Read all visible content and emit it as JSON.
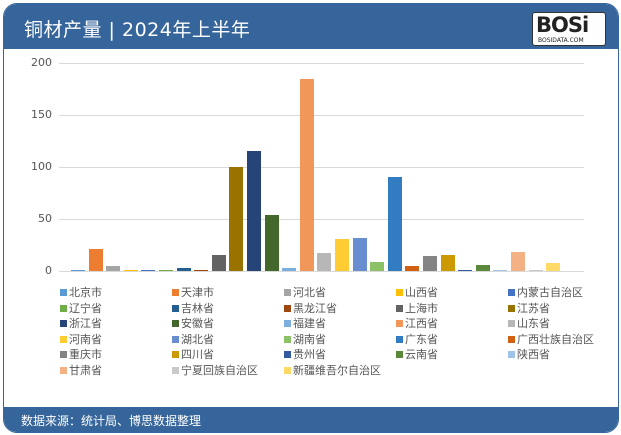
{
  "header": {
    "title": "铜材产量 | 2024年上半年",
    "logo_text": "BOSi",
    "logo_sub": "BOSIDATA.COM"
  },
  "footer": {
    "source": "数据来源：统计局、博思数据整理"
  },
  "chart_data": {
    "type": "bar",
    "title": "铜材产量 | 2024年上半年",
    "xlabel": "",
    "ylabel": "",
    "ylim": [
      0,
      200
    ],
    "yticks": [
      0,
      50,
      100,
      150,
      200
    ],
    "grid": true,
    "legend_position": "bottom",
    "categories": [
      "北京市",
      "天津市",
      "河北省",
      "山西省",
      "内蒙古自治区",
      "辽宁省",
      "吉林省",
      "黑龙江省",
      "上海市",
      "江苏省",
      "浙江省",
      "安徽省",
      "福建省",
      "江西省",
      "山东省",
      "河南省",
      "湖北省",
      "湖南省",
      "广东省",
      "广西壮族自治区",
      "重庆市",
      "四川省",
      "贵州省",
      "云南省",
      "陕西省",
      "甘肃省",
      "宁夏回族自治区",
      "新疆维吾尔自治区"
    ],
    "values": [
      1,
      21,
      5,
      1,
      1,
      1,
      3,
      1,
      15,
      100,
      115,
      54,
      3,
      185,
      17,
      31,
      32,
      9,
      90,
      5,
      14,
      15,
      1,
      6,
      1,
      18,
      1,
      8
    ],
    "colors": [
      "#5b9bd5",
      "#ed7d31",
      "#a5a5a5",
      "#ffc000",
      "#4472c4",
      "#70ad47",
      "#255e91",
      "#9e480e",
      "#636363",
      "#997300",
      "#264478",
      "#43682b",
      "#7cafdd",
      "#f1975a",
      "#b7b7b7",
      "#ffcd33",
      "#698ed0",
      "#8cc168",
      "#327dc2",
      "#d26012",
      "#848484",
      "#cc9a00",
      "#335aa1",
      "#5a8a39",
      "#a0c4e9",
      "#f4b183",
      "#c9c9c9",
      "#ffd966"
    ]
  }
}
